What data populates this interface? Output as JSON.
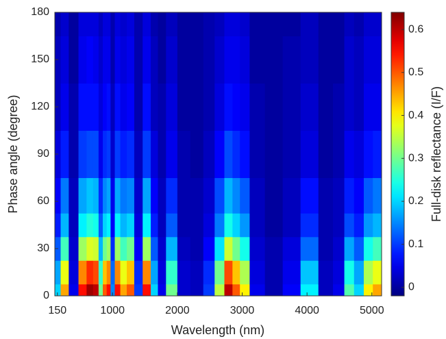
{
  "chart_data": {
    "type": "heatmap",
    "xlabel": "Wavelength (nm)",
    "ylabel": "Phase angle (degree)",
    "colorbar_label": "Full-disk reflectance (I/F)",
    "colormap": "jet",
    "x": [
      150,
      250,
      400,
      550,
      650,
      750,
      820,
      880,
      940,
      1000,
      1070,
      1170,
      1270,
      1400,
      1530,
      1650,
      1750,
      1900,
      2100,
      2300,
      2500,
      2650,
      2800,
      2900,
      3030,
      3200,
      3500,
      3750,
      4050,
      4300,
      4500,
      4650,
      4800,
      4950,
      5080
    ],
    "y": [
      0,
      15,
      30,
      45,
      60,
      90,
      120,
      150,
      180
    ],
    "z": [
      [
        0.2,
        0.17,
        0.12,
        0.08,
        0.06,
        0.04,
        0.02,
        0.02,
        0.01
      ],
      [
        0.45,
        0.38,
        0.27,
        0.18,
        0.14,
        0.08,
        0.05,
        0.04,
        0.03
      ],
      [
        0.05,
        0.04,
        0.03,
        0.02,
        0.02,
        0.01,
        0.01,
        0,
        0
      ],
      [
        0.55,
        0.47,
        0.33,
        0.22,
        0.17,
        0.1,
        0.07,
        0.05,
        0.04
      ],
      [
        0.62,
        0.53,
        0.37,
        0.25,
        0.19,
        0.11,
        0.07,
        0.06,
        0.04
      ],
      [
        0.6,
        0.51,
        0.36,
        0.24,
        0.18,
        0.11,
        0.07,
        0.05,
        0.04
      ],
      [
        0.3,
        0.26,
        0.18,
        0.12,
        0.09,
        0.05,
        0.04,
        0.03,
        0.02
      ],
      [
        0.5,
        0.43,
        0.3,
        0.2,
        0.15,
        0.09,
        0.06,
        0.05,
        0.04
      ],
      [
        0.55,
        0.47,
        0.33,
        0.22,
        0.17,
        0.1,
        0.07,
        0.05,
        0.04
      ],
      [
        0.15,
        0.13,
        0.09,
        0.06,
        0.05,
        0.03,
        0.02,
        0.01,
        0.01
      ],
      [
        0.55,
        0.47,
        0.33,
        0.22,
        0.17,
        0.1,
        0.07,
        0.05,
        0.04
      ],
      [
        0.45,
        0.38,
        0.27,
        0.18,
        0.14,
        0.08,
        0.05,
        0.04,
        0.03
      ],
      [
        0.5,
        0.43,
        0.3,
        0.2,
        0.15,
        0.09,
        0.06,
        0.05,
        0.04
      ],
      [
        0.1,
        0.09,
        0.06,
        0.04,
        0.03,
        0.02,
        0.01,
        0.01,
        0.01
      ],
      [
        0.55,
        0.47,
        0.33,
        0.22,
        0.17,
        0.1,
        0.07,
        0.05,
        0.04
      ],
      [
        0.2,
        0.17,
        0.12,
        0.08,
        0.06,
        0.04,
        0.02,
        0.02,
        0.01
      ],
      [
        0.05,
        0.04,
        0.03,
        0.02,
        0.02,
        0.01,
        0.01,
        0,
        0
      ],
      [
        0.3,
        0.26,
        0.18,
        0.12,
        0.09,
        0.05,
        0.04,
        0.03,
        0.02
      ],
      [
        0.03,
        0.03,
        0.02,
        0.01,
        0.01,
        0.01,
        0,
        0,
        0
      ],
      [
        0.02,
        0.02,
        0.01,
        0.01,
        0.01,
        0,
        0,
        0,
        0
      ],
      [
        0.1,
        0.09,
        0.06,
        0.04,
        0.03,
        0.02,
        0.01,
        0.01,
        0.01
      ],
      [
        0.35,
        0.3,
        0.21,
        0.14,
        0.11,
        0.06,
        0.04,
        0.03,
        0.02
      ],
      [
        0.6,
        0.51,
        0.36,
        0.24,
        0.18,
        0.11,
        0.07,
        0.05,
        0.04
      ],
      [
        0.5,
        0.43,
        0.3,
        0.2,
        0.15,
        0.09,
        0.06,
        0.05,
        0.04
      ],
      [
        0.4,
        0.34,
        0.24,
        0.16,
        0.12,
        0.07,
        0.05,
        0.04,
        0.03
      ],
      [
        0.05,
        0.04,
        0.03,
        0.02,
        0.02,
        0.01,
        0.01,
        0,
        0
      ],
      [
        0.01,
        0.01,
        0.01,
        0,
        0,
        0,
        0,
        0,
        0
      ],
      [
        0.06,
        0.05,
        0.04,
        0.02,
        0.02,
        0.01,
        0.01,
        0.01,
        0
      ],
      [
        0.22,
        0.19,
        0.13,
        0.09,
        0.07,
        0.04,
        0.03,
        0.02,
        0.02
      ],
      [
        0.02,
        0.02,
        0.01,
        0.01,
        0.01,
        0,
        0,
        0,
        0
      ],
      [
        0.05,
        0.04,
        0.03,
        0.02,
        0.02,
        0.01,
        0.01,
        0,
        0
      ],
      [
        0.28,
        0.24,
        0.17,
        0.11,
        0.08,
        0.05,
        0.03,
        0.03,
        0.02
      ],
      [
        0.2,
        0.17,
        0.12,
        0.08,
        0.06,
        0.04,
        0.02,
        0.02,
        0.01
      ],
      [
        0.4,
        0.34,
        0.24,
        0.16,
        0.12,
        0.07,
        0.05,
        0.04,
        0.03
      ],
      [
        0.45,
        0.38,
        0.27,
        0.18,
        0.14,
        0.08,
        0.05,
        0.04,
        0.03
      ]
    ],
    "xlim": [
      110,
      5150
    ],
    "xticks": [
      150,
      1000,
      2000,
      3000,
      4000,
      5000
    ],
    "ylim": [
      0,
      180
    ],
    "yticks": [
      0,
      30,
      60,
      90,
      120,
      150,
      180
    ],
    "clim": [
      -0.02,
      0.64
    ],
    "cticks": [
      0,
      0.1,
      0.2,
      0.3,
      0.4,
      0.5,
      0.6
    ]
  }
}
